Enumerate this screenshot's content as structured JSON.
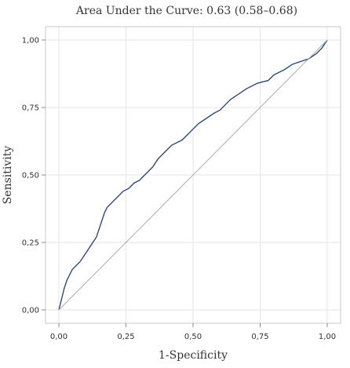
{
  "chart_data": {
    "type": "line",
    "title": "Area Under the Curve: 0.63 (0.58–0.68)",
    "xlabel": "1-Specificity",
    "ylabel": "Sensitivity",
    "xlim": [
      0,
      1
    ],
    "ylim": [
      0,
      1
    ],
    "x_ticks": [
      "0,00",
      "0,25",
      "0,50",
      "0,75",
      "1,00"
    ],
    "y_ticks": [
      "0,00",
      "0,25",
      "0,50",
      "0,75",
      "1,00"
    ],
    "grid": true,
    "legend": "none",
    "series": [
      {
        "color": "#2e4a7d",
        "points": [
          [
            0.0,
            0.0
          ],
          [
            0.005,
            0.02
          ],
          [
            0.01,
            0.04
          ],
          [
            0.015,
            0.06
          ],
          [
            0.02,
            0.08
          ],
          [
            0.03,
            0.11
          ],
          [
            0.04,
            0.13
          ],
          [
            0.05,
            0.15
          ],
          [
            0.06,
            0.16
          ],
          [
            0.08,
            0.18
          ],
          [
            0.1,
            0.21
          ],
          [
            0.12,
            0.24
          ],
          [
            0.14,
            0.27
          ],
          [
            0.15,
            0.3
          ],
          [
            0.16,
            0.33
          ],
          [
            0.17,
            0.36
          ],
          [
            0.18,
            0.38
          ],
          [
            0.2,
            0.4
          ],
          [
            0.22,
            0.42
          ],
          [
            0.24,
            0.44
          ],
          [
            0.26,
            0.45
          ],
          [
            0.28,
            0.47
          ],
          [
            0.3,
            0.48
          ],
          [
            0.32,
            0.5
          ],
          [
            0.35,
            0.53
          ],
          [
            0.37,
            0.56
          ],
          [
            0.4,
            0.59
          ],
          [
            0.42,
            0.61
          ],
          [
            0.44,
            0.62
          ],
          [
            0.46,
            0.63
          ],
          [
            0.48,
            0.65
          ],
          [
            0.5,
            0.67
          ],
          [
            0.52,
            0.69
          ],
          [
            0.55,
            0.71
          ],
          [
            0.58,
            0.73
          ],
          [
            0.6,
            0.74
          ],
          [
            0.62,
            0.76
          ],
          [
            0.64,
            0.78
          ],
          [
            0.67,
            0.8
          ],
          [
            0.7,
            0.82
          ],
          [
            0.72,
            0.83
          ],
          [
            0.74,
            0.84
          ],
          [
            0.78,
            0.85
          ],
          [
            0.8,
            0.87
          ],
          [
            0.82,
            0.88
          ],
          [
            0.84,
            0.89
          ],
          [
            0.87,
            0.91
          ],
          [
            0.9,
            0.92
          ],
          [
            0.93,
            0.93
          ],
          [
            0.96,
            0.95
          ],
          [
            0.98,
            0.97
          ],
          [
            1.0,
            1.0
          ]
        ]
      },
      {
        "color": "#aaaaaa",
        "points": [
          [
            0,
            0
          ],
          [
            1,
            1
          ]
        ]
      }
    ]
  }
}
